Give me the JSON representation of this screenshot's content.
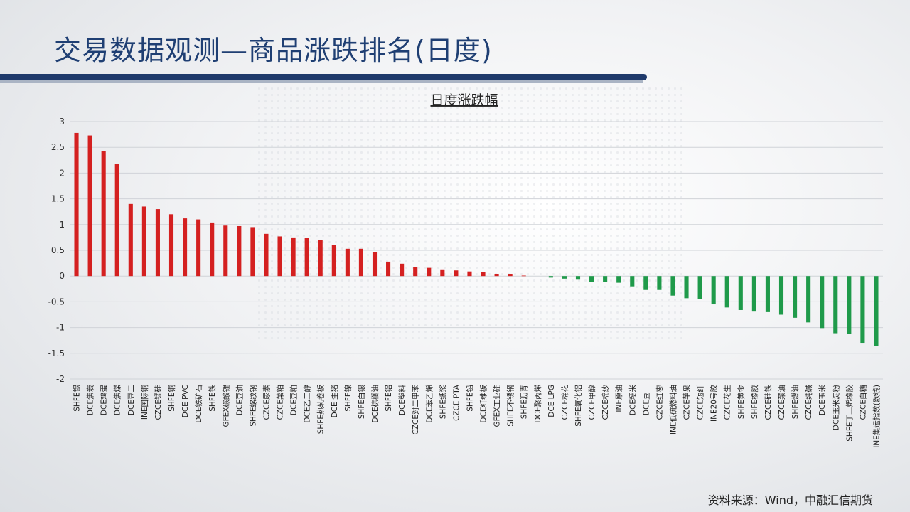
{
  "slide": {
    "title": "交易数据观测—商品涨跌排名(日度)",
    "source": "资料来源：Wind，中融汇信期货"
  },
  "chart_data": {
    "type": "bar",
    "title": "日度涨跌幅",
    "ylim": [
      -2,
      3
    ],
    "yticks": [
      3,
      2.5,
      2,
      1.5,
      1,
      0.5,
      0,
      -0.5,
      -1,
      -1.5,
      -2
    ],
    "grid": true,
    "colors": {
      "positive": "#d42020",
      "negative": "#1f9a4a"
    },
    "categories": [
      "SHFE锡",
      "DCE焦炭",
      "DCE鸡蛋",
      "DCE焦煤",
      "DCE豆二",
      "INE国际铜",
      "CZCE锰硅",
      "SHFE铜",
      "DCE PVC",
      "DCE铁矿石",
      "SHFE铁",
      "GFEX碳酸锂",
      "DCE豆油",
      "SHFE螺纹钢",
      "CZCE尿素",
      "CZCE菜粕",
      "DCE豆粕",
      "DCE乙二醇",
      "SHFE热轧卷板",
      "DCE 生猪",
      "SHFE镍",
      "SHFE白银",
      "DCE棕榈油",
      "SHFE铝",
      "DCE塑料",
      "CZCE对二甲苯",
      "DCE苯乙烯",
      "SHFE纸浆",
      "CZCE PTA",
      "SHFE铅",
      "DCE纤维板",
      "GFEX工业硅",
      "SHFE不锈钢",
      "SHFE沥青",
      "DCE聚丙烯",
      "DCE LPG",
      "CZCE棉花",
      "SHFE氧化铝",
      "CZCE甲醇",
      "CZCE棉纱",
      "INE原油",
      "DCE粳米",
      "DCE豆一",
      "CZCE红枣",
      "INE低硫燃料油",
      "CZCE苹果",
      "CZCE短纤",
      "INE20号胶",
      "CZCE花生",
      "SHFE黄金",
      "SHFE橡胶",
      "CZCE硅铁",
      "CZCE菜油",
      "SHFE燃油",
      "CZCE纯碱",
      "DCE玉米",
      "DCE玉米淀粉",
      "SHFE丁二烯橡胶",
      "CZCE白糖",
      "INE集运指数(欧线)"
    ],
    "values": [
      2.78,
      2.73,
      2.43,
      2.18,
      1.4,
      1.35,
      1.3,
      1.2,
      1.12,
      1.1,
      1.04,
      0.98,
      0.97,
      0.95,
      0.82,
      0.77,
      0.75,
      0.74,
      0.7,
      0.61,
      0.53,
      0.53,
      0.47,
      0.28,
      0.24,
      0.17,
      0.16,
      0.13,
      0.11,
      0.09,
      0.08,
      0.04,
      0.03,
      0.01,
      0.0,
      -0.03,
      -0.05,
      -0.07,
      -0.11,
      -0.12,
      -0.13,
      -0.2,
      -0.27,
      -0.27,
      -0.38,
      -0.43,
      -0.44,
      -0.55,
      -0.61,
      -0.66,
      -0.69,
      -0.7,
      -0.75,
      -0.81,
      -0.9,
      -1.01,
      -1.11,
      -1.12,
      -1.31,
      -1.36
    ]
  }
}
